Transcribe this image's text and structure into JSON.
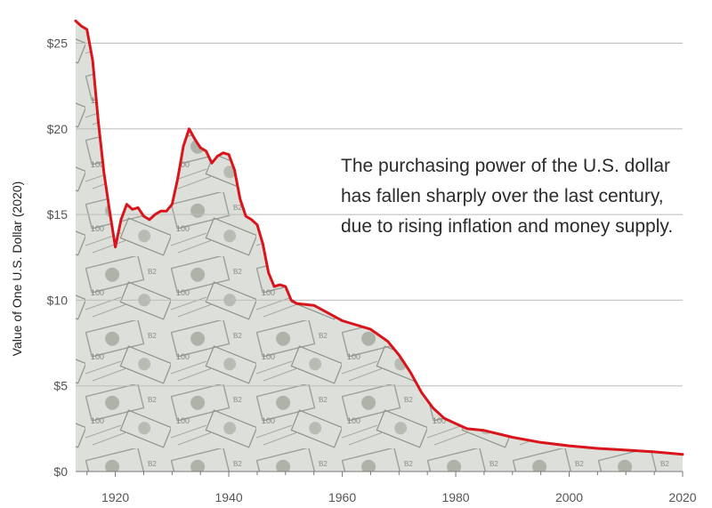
{
  "chart_data": {
    "type": "area",
    "title": "",
    "xlabel": "",
    "ylabel": "Value of One U.S. Dollar (2020)",
    "xlim": [
      1913,
      2020
    ],
    "ylim": [
      0,
      27
    ],
    "x_ticks": [
      1920,
      1940,
      1960,
      1980,
      2000,
      2020
    ],
    "y_ticks": [
      0,
      5,
      10,
      15,
      20,
      25
    ],
    "x_tick_labels": [
      "1920",
      "1940",
      "1960",
      "1980",
      "2000",
      "2020"
    ],
    "y_tick_labels": [
      "$0",
      "$5",
      "$10",
      "$15",
      "$20",
      "$25"
    ],
    "grid": "horizontal",
    "annotation": "The purchasing power of the U.S. dollar has fallen sharply over the last century, due to rising inflation and money supply.",
    "colors": {
      "line": "#d9141b",
      "grid": "#bbbbbb",
      "fill": "#d8dcd6",
      "fill_dark": "#8e948b"
    },
    "series": [
      {
        "x": [
          1913,
          1914,
          1915,
          1916,
          1917,
          1918,
          1919,
          1920,
          1921,
          1922,
          1923,
          1924,
          1925,
          1926,
          1927,
          1928,
          1929,
          1930,
          1931,
          1932,
          1933,
          1934,
          1935,
          1936,
          1937,
          1938,
          1939,
          1940,
          1941,
          1942,
          1943,
          1944,
          1945,
          1946,
          1947,
          1948,
          1949,
          1950,
          1951,
          1952,
          1955,
          1960,
          1965,
          1968,
          1970,
          1972,
          1974,
          1976,
          1978,
          1980,
          1982,
          1985,
          1990,
          1995,
          2000,
          2005,
          2010,
          2015,
          2020
        ],
        "values": [
          26.3,
          26.0,
          25.8,
          24.0,
          20.4,
          17.4,
          15.2,
          13.1,
          14.7,
          15.6,
          15.3,
          15.4,
          14.9,
          14.7,
          15.0,
          15.2,
          15.2,
          15.6,
          17.1,
          19.0,
          20.0,
          19.4,
          18.9,
          18.7,
          18.0,
          18.4,
          18.6,
          18.5,
          17.6,
          15.9,
          14.9,
          14.7,
          14.4,
          13.3,
          11.6,
          10.8,
          10.9,
          10.8,
          10.0,
          9.8,
          9.7,
          8.8,
          8.3,
          7.6,
          6.8,
          5.8,
          4.6,
          3.7,
          3.1,
          2.8,
          2.5,
          2.4,
          2.0,
          1.7,
          1.5,
          1.35,
          1.25,
          1.15,
          1.0
        ]
      }
    ]
  }
}
